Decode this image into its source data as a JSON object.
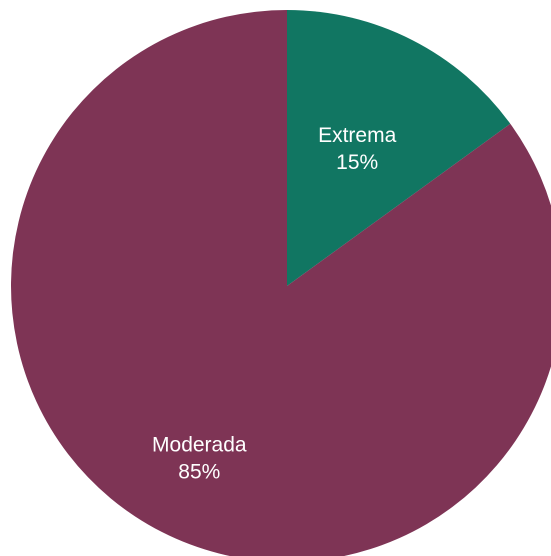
{
  "chart_data": {
    "type": "pie",
    "title": "",
    "categories": [
      "Extrema",
      "Moderada"
    ],
    "values": [
      15,
      85
    ],
    "value_labels": [
      "15%",
      "85%"
    ],
    "colors": [
      "#117662",
      "#7e3455"
    ],
    "start": "12 o'clock",
    "direction": "clockwise",
    "legend": "none",
    "labels": "inside slices"
  }
}
